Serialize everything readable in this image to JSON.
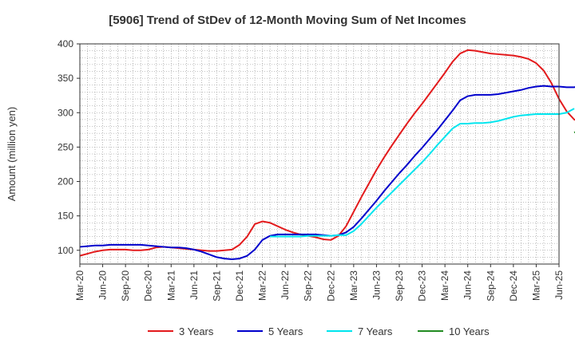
{
  "chart_data": {
    "type": "line",
    "title": "[5906]  Trend of StDev of 12-Month Moving Sum of Net Incomes",
    "ylabel": "Amount (million yen)",
    "xlabel": "",
    "ylim": [
      80,
      400
    ],
    "y_ticks": [
      100,
      150,
      200,
      250,
      300,
      350,
      400
    ],
    "x_tick_labels": [
      "Mar-20",
      "Jun-20",
      "Sep-20",
      "Dec-20",
      "Mar-21",
      "Jun-21",
      "Sep-21",
      "Dec-21",
      "Mar-22",
      "Jun-22",
      "Sep-22",
      "Dec-22",
      "Mar-23",
      "Jun-23",
      "Sep-23",
      "Dec-23",
      "Mar-24",
      "Jun-24",
      "Sep-24",
      "Dec-24",
      "Mar-25",
      "Jun-25"
    ],
    "x_start": "2020-03",
    "grid": true,
    "legend_position": "bottom",
    "series": [
      {
        "name": "3 Years",
        "color": "#e31a1c",
        "values": [
          92,
          95,
          98,
          100,
          101,
          101,
          101,
          100,
          100,
          101,
          104,
          105,
          104,
          103,
          102,
          101,
          100,
          99,
          99,
          100,
          101,
          108,
          120,
          138,
          142,
          140,
          135,
          130,
          126,
          123,
          121,
          119,
          116,
          115,
          121,
          135,
          156,
          177,
          197,
          217,
          235,
          252,
          268,
          284,
          299,
          313,
          328,
          343,
          358,
          374,
          386,
          391,
          390,
          388,
          386,
          385,
          384,
          383,
          381,
          378,
          372,
          361,
          343,
          320,
          302,
          290,
          286
        ]
      },
      {
        "name": "5 Years",
        "color": "#0000cc",
        "values": [
          105,
          106,
          107,
          107,
          108,
          108,
          108,
          108,
          108,
          107,
          106,
          105,
          104,
          104,
          103,
          101,
          98,
          94,
          90,
          88,
          87,
          88,
          92,
          101,
          115,
          121,
          123,
          123,
          123,
          123,
          123,
          123,
          122,
          121,
          122,
          126,
          134,
          146,
          159,
          172,
          186,
          199,
          212,
          224,
          237,
          249,
          262,
          275,
          289,
          303,
          318,
          324,
          326,
          326,
          326,
          327,
          329,
          331,
          333,
          336,
          338,
          339,
          338,
          338,
          337,
          337,
          339,
          342
        ]
      },
      {
        "name": "7 Years",
        "color": "#00e5ee",
        "start_index": 25,
        "values": [
          120,
          120,
          120,
          120,
          120,
          121,
          121,
          121,
          121,
          122,
          122,
          128,
          138,
          150,
          162,
          173,
          184,
          195,
          206,
          217,
          228,
          240,
          253,
          265,
          277,
          284,
          284,
          285,
          285,
          286,
          288,
          291,
          294,
          296,
          297,
          298,
          298,
          298,
          298,
          300,
          306
        ]
      },
      {
        "name": "10 Years",
        "color": "#228b22",
        "start_index": 65,
        "values": [
          271,
          277
        ]
      }
    ]
  }
}
